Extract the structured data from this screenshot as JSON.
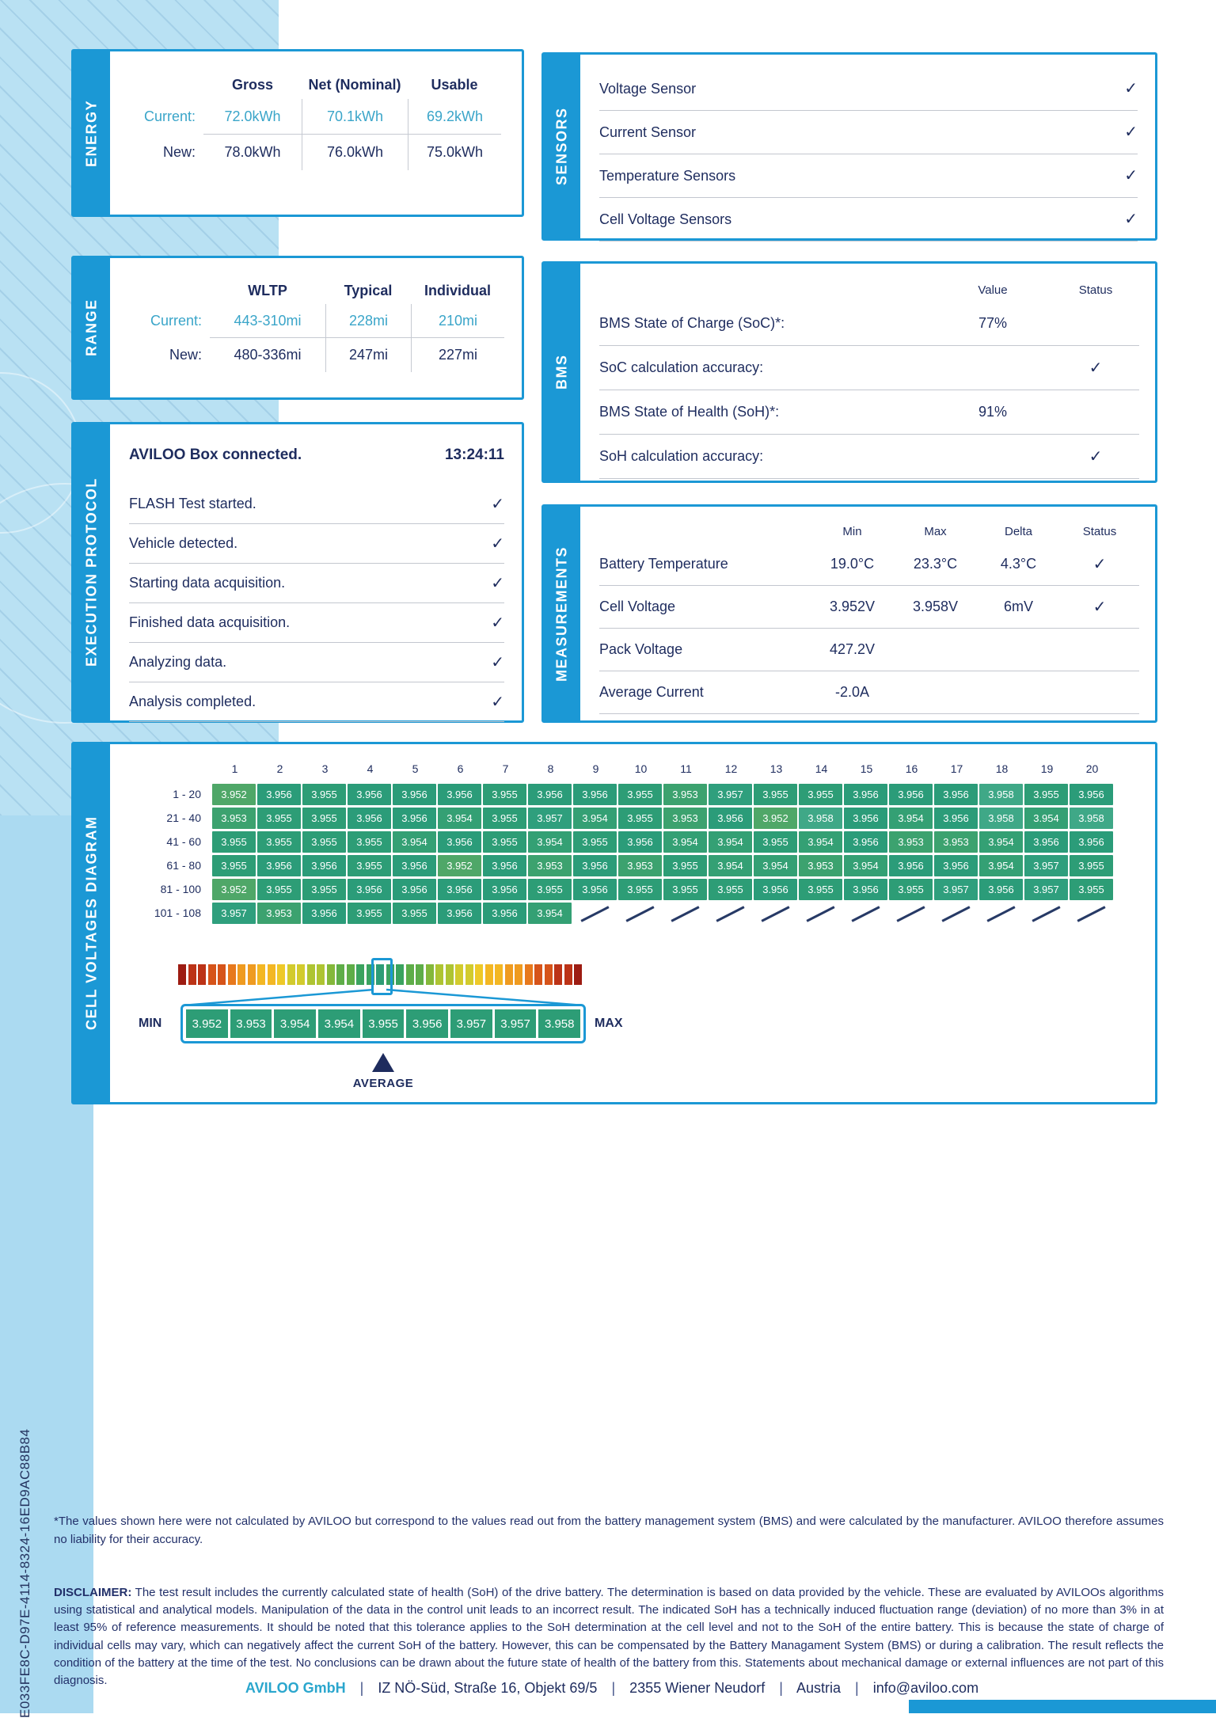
{
  "colors": {
    "accent": "#1b98d5",
    "navy": "#1e2c5e",
    "cyan": "#3aa5c9",
    "light_blue": "#abdaf1",
    "cell_green": "#2d9d76"
  },
  "page": {
    "vertical_id": "E033FE8C-D97E-4114-8324-16ED9AC88B84",
    "check_glyph": "✓"
  },
  "energy": {
    "band": "ENERGY",
    "headers": [
      "Gross",
      "Net (Nominal)",
      "Usable"
    ],
    "rows": [
      {
        "label": "Current:",
        "values": [
          "72.0kWh",
          "70.1kWh",
          "69.2kWh"
        ]
      },
      {
        "label": "New:",
        "values": [
          "78.0kWh",
          "76.0kWh",
          "75.0kWh"
        ]
      }
    ]
  },
  "range": {
    "band": "RANGE",
    "headers": [
      "WLTP",
      "Typical",
      "Individual"
    ],
    "rows": [
      {
        "label": "Current:",
        "values": [
          "443-310mi",
          "228mi",
          "210mi"
        ]
      },
      {
        "label": "New:",
        "values": [
          "480-336mi",
          "247mi",
          "227mi"
        ]
      }
    ]
  },
  "protocol": {
    "band": "EXECUTION PROTOCOL",
    "header_label": "AVILOO Box connected.",
    "header_time": "13:24:11",
    "steps": [
      "FLASH Test started.",
      "Vehicle detected.",
      "Starting data acquisition.",
      "Finished data acquisition.",
      "Analyzing data.",
      "Analysis completed."
    ]
  },
  "sensors": {
    "band": "SENSORS",
    "items": [
      "Voltage Sensor",
      "Current Sensor",
      "Temperature Sensors",
      "Cell Voltage Sensors"
    ]
  },
  "bms": {
    "band": "BMS",
    "value_header": "Value",
    "status_header": "Status",
    "rows": [
      {
        "label": "BMS State of Charge (SoC)*:",
        "value": "77%",
        "check": false
      },
      {
        "label": "SoC calculation accuracy:",
        "value": "",
        "check": true
      },
      {
        "label": "BMS State of Health (SoH)*:",
        "value": "91%",
        "check": false
      },
      {
        "label": "SoH calculation accuracy:",
        "value": "",
        "check": true
      }
    ]
  },
  "measurements": {
    "band": "MEASUREMENTS",
    "headers": [
      "Min",
      "Max",
      "Delta",
      "Status"
    ],
    "rows": [
      {
        "label": "Battery Temperature",
        "min": "19.0°C",
        "max": "23.3°C",
        "delta": "4.3°C",
        "check": true
      },
      {
        "label": "Cell Voltage",
        "min": "3.952V",
        "max": "3.958V",
        "delta": "6mV",
        "check": true
      },
      {
        "label": "Pack Voltage",
        "min": "427.2V",
        "max": "",
        "delta": "",
        "check": false
      },
      {
        "label": "Average Current",
        "min": "-2.0A",
        "max": "",
        "delta": "",
        "check": false
      }
    ]
  },
  "cell_diagram": {
    "band": "CELL VOLTAGES DIAGRAM",
    "col_headers": [
      "1",
      "2",
      "3",
      "4",
      "5",
      "6",
      "7",
      "8",
      "9",
      "10",
      "11",
      "12",
      "13",
      "14",
      "15",
      "16",
      "17",
      "18",
      "19",
      "20"
    ],
    "row_labels": [
      "1 - 20",
      "21 - 40",
      "41 - 60",
      "61 - 80",
      "81 - 100",
      "101 - 108"
    ],
    "values": [
      [
        "3.952",
        "3.956",
        "3.955",
        "3.956",
        "3.956",
        "3.956",
        "3.955",
        "3.956",
        "3.956",
        "3.955",
        "3.953",
        "3.957",
        "3.955",
        "3.955",
        "3.956",
        "3.956",
        "3.956",
        "3.958",
        "3.955",
        "3.956"
      ],
      [
        "3.953",
        "3.955",
        "3.955",
        "3.956",
        "3.956",
        "3.954",
        "3.955",
        "3.957",
        "3.954",
        "3.955",
        "3.953",
        "3.956",
        "3.952",
        "3.958",
        "3.956",
        "3.954",
        "3.956",
        "3.958",
        "3.954",
        "3.958"
      ],
      [
        "3.955",
        "3.955",
        "3.955",
        "3.955",
        "3.954",
        "3.956",
        "3.955",
        "3.954",
        "3.955",
        "3.956",
        "3.954",
        "3.954",
        "3.955",
        "3.954",
        "3.956",
        "3.953",
        "3.953",
        "3.954",
        "3.956",
        "3.956"
      ],
      [
        "3.955",
        "3.956",
        "3.956",
        "3.955",
        "3.956",
        "3.952",
        "3.956",
        "3.953",
        "3.956",
        "3.953",
        "3.955",
        "3.954",
        "3.954",
        "3.953",
        "3.954",
        "3.956",
        "3.956",
        "3.954",
        "3.957",
        "3.955"
      ],
      [
        "3.952",
        "3.955",
        "3.955",
        "3.956",
        "3.956",
        "3.956",
        "3.956",
        "3.955",
        "3.956",
        "3.955",
        "3.955",
        "3.955",
        "3.956",
        "3.955",
        "3.956",
        "3.955",
        "3.957",
        "3.956",
        "3.957",
        "3.955"
      ],
      [
        "3.957",
        "3.953",
        "3.956",
        "3.955",
        "3.955",
        "3.956",
        "3.956",
        "3.954",
        null,
        null,
        null,
        null,
        null,
        null,
        null,
        null,
        null,
        null,
        null,
        null
      ]
    ],
    "default_cell_color": "#2d9d76",
    "value_colors": {
      "3.952": "#4fa768",
      "3.953": "#3ca26f",
      "3.954": "#34a074",
      "3.955": "#2d9d76",
      "3.956": "#2b9c79",
      "3.957": "#2f9f7d",
      "3.958": "#3fa887"
    },
    "scale_stops_center_to_edge": [
      "#2d9d76",
      "#3aa35f",
      "#5ead48",
      "#84b83a",
      "#aec432",
      "#d2cb2d",
      "#eec928",
      "#f3b723",
      "#ef9b20",
      "#e7791d",
      "#d6541a",
      "#bc3317",
      "#9d1c12"
    ],
    "segments": 41,
    "magnifier": {
      "min_label": "MIN",
      "max_label": "MAX",
      "cells": [
        "3.952",
        "3.953",
        "3.954",
        "3.954",
        "3.955",
        "3.956",
        "3.957",
        "3.957",
        "3.958"
      ],
      "cell_color": "#2d9d76",
      "average_label": "AVERAGE"
    }
  },
  "footer": {
    "footnote": "*The values shown here were not calculated by AVILOO but correspond to the values read out from the battery management system (BMS) and were calculated by the manufacturer. AVILOO therefore assumes no liability for their accuracy.",
    "disclaimer_label": "DISCLAIMER:",
    "disclaimer_text": " The test result includes the currently calculated state of health (SoH) of the drive battery. The determination is based on data provided by the vehicle. These are evaluated by AVILOOs algorithms using statistical and analytical models. Manipulation of the data in the control unit leads to an incorrect result. The indicated SoH has a technically induced fluctuation range (deviation) of no more than 3% in at least 95% of reference measurements. It should be noted that this tolerance applies to the SoH determination at the cell level and not to the SoH of the entire battery. This is because the state of charge of individual cells may vary, which can negatively affect the current SoH of the battery. However, this can be compensated by the Battery Managament System (BMS) or during a calibration. The result reflects the condition of the battery at the time of the test. No conclusions can be drawn about the future state of health of the battery from this. Statements about mechanical damage or external influences are not part of this diagnosis.",
    "company": "AVILOO GmbH",
    "separator": "|",
    "address": [
      "IZ NÖ-Süd, Straße 16, Objekt 69/5",
      "2355 Wiener Neudorf",
      "Austria",
      "info@aviloo.com"
    ]
  }
}
